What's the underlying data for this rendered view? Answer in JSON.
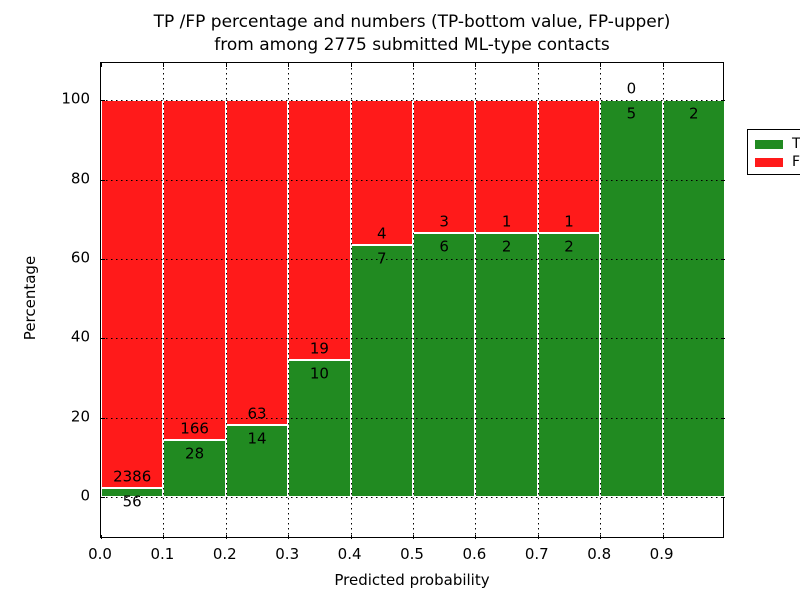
{
  "colors": {
    "tp": "#218a21",
    "fp": "#ff1a1a",
    "grid": "#000000",
    "background": "#ffffff",
    "text": "#000000"
  },
  "chart_data": {
    "type": "bar",
    "stacked": true,
    "normalized_to_percent": true,
    "title_line1": "TP /FP percentage and numbers (TP-bottom value, FP-upper)",
    "title_line2": "from among 2775 submitted ML-type contacts",
    "xlabel": "Predicted probability",
    "ylabel": "Percentage",
    "xlim": [
      0.0,
      1.0
    ],
    "ylim": [
      -11,
      109
    ],
    "x_tick_labels": [
      "0.0",
      "0.1",
      "0.2",
      "0.3",
      "0.4",
      "0.5",
      "0.6",
      "0.7",
      "0.8",
      "0.9"
    ],
    "x_tick_values": [
      0.0,
      0.1,
      0.2,
      0.3,
      0.4,
      0.5,
      0.6,
      0.7,
      0.8,
      0.9
    ],
    "y_tick_labels": [
      "0",
      "20",
      "40",
      "60",
      "80",
      "100"
    ],
    "y_tick_values": [
      0,
      20,
      40,
      60,
      80,
      100
    ],
    "grid": true,
    "grid_style": "dotted",
    "legend": {
      "position": "upper right",
      "entries": [
        {
          "label": "TP",
          "color_key": "tp"
        },
        {
          "label": "FP",
          "color_key": "fp"
        }
      ]
    },
    "bin_width": 0.1,
    "bins": [
      {
        "range": "0.0-0.1",
        "tp": 56,
        "fp": 2386,
        "tp_percent": 2.3,
        "tp_label": "56",
        "fp_label": "2386",
        "fp_label_visible": true
      },
      {
        "range": "0.1-0.2",
        "tp": 28,
        "fp": 166,
        "tp_percent": 14.4,
        "tp_label": "28",
        "fp_label": "166",
        "fp_label_visible": true
      },
      {
        "range": "0.2-0.3",
        "tp": 14,
        "fp": 63,
        "tp_percent": 18.2,
        "tp_label": "14",
        "fp_label": "63",
        "fp_label_visible": true
      },
      {
        "range": "0.3-0.4",
        "tp": 10,
        "fp": 19,
        "tp_percent": 34.5,
        "tp_label": "10",
        "fp_label": "19",
        "fp_label_visible": true
      },
      {
        "range": "0.4-0.5",
        "tp": 7,
        "fp": 4,
        "tp_percent": 63.6,
        "tp_label": "7",
        "fp_label": "4",
        "fp_label_visible": true
      },
      {
        "range": "0.5-0.6",
        "tp": 6,
        "fp": 3,
        "tp_percent": 66.7,
        "tp_label": "6",
        "fp_label": "3",
        "fp_label_visible": true
      },
      {
        "range": "0.6-0.7",
        "tp": 2,
        "fp": 1,
        "tp_percent": 66.7,
        "tp_label": "2",
        "fp_label": "1",
        "fp_label_visible": true
      },
      {
        "range": "0.7-0.8",
        "tp": 2,
        "fp": 1,
        "tp_percent": 66.7,
        "tp_label": "2",
        "fp_label": "1",
        "fp_label_visible": true
      },
      {
        "range": "0.8-0.9",
        "tp": 5,
        "fp": 0,
        "tp_percent": 100.0,
        "tp_label": "5",
        "fp_label": "0",
        "fp_label_visible": true
      },
      {
        "range": "0.9-1.0",
        "tp": 2,
        "fp": 0,
        "tp_percent": 100.0,
        "tp_label": "2",
        "fp_label": "0",
        "fp_label_visible": false
      }
    ]
  }
}
